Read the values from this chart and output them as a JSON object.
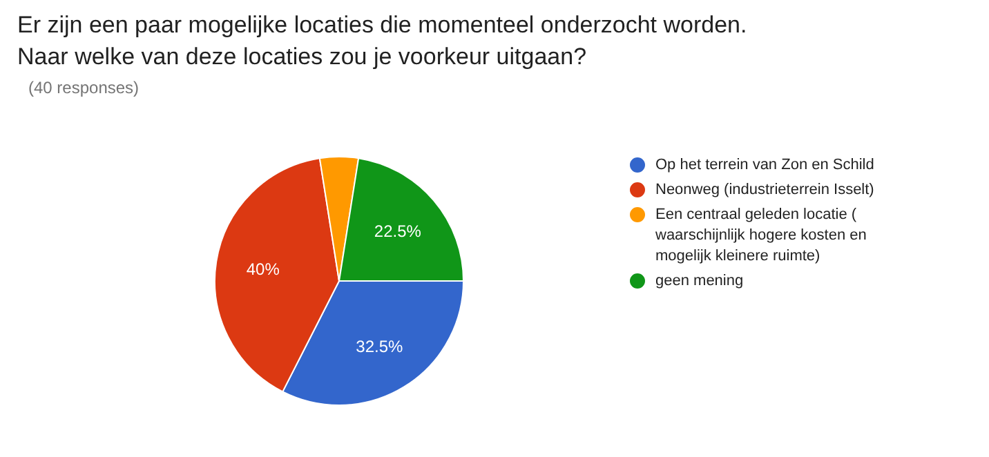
{
  "chart_data": {
    "type": "pie",
    "title": "Er zijn een paar mogelijke locaties die momenteel onderzocht worden. Naar welke van deze locaties zou je voorkeur uitgaan?",
    "subtitle": "(40 responses)",
    "categories": [
      "Op het terrein van Zon en Schild",
      "Neonweg (industrieterrein Isselt)",
      "Een centraal geleden locatie ( waarschijnlijk hogere kosten en mogelijk kleinere ruimte)",
      "geen mening"
    ],
    "values": [
      32.5,
      40,
      5,
      22.5
    ],
    "colors": [
      "#3366cc",
      "#dc3912",
      "#ff9900",
      "#109618"
    ],
    "value_labels": [
      "32.5%",
      "40%",
      null,
      "22.5%"
    ],
    "legend": "right"
  }
}
